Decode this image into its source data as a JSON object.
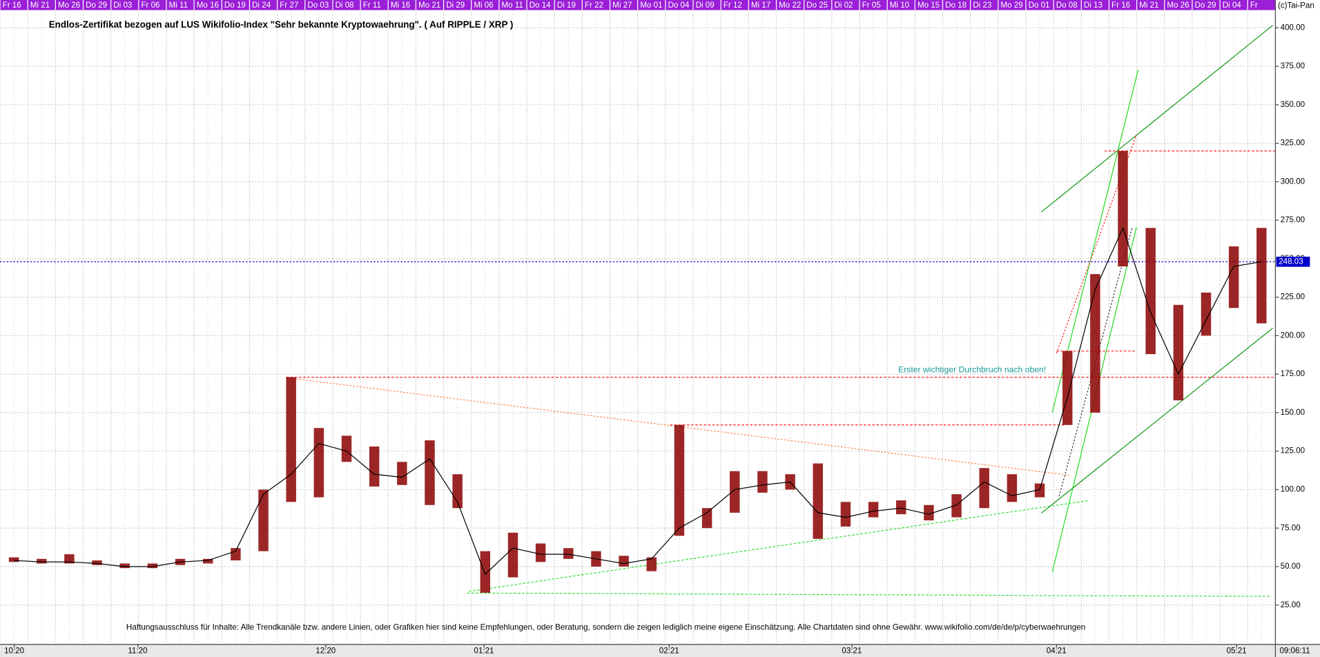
{
  "chart_data": {
    "type": "range",
    "title": "Endlos-Zertifikat bezogen auf LUS Wikifolio-Index \"Sehr bekannte Kryptowaehrung\". ( Auf RIPPLE / XRP )",
    "source": "(c)Tai-Pan",
    "timestamp": "09:06:11",
    "annotation": "Erster wichtiger Durchbruch nach oben!",
    "disclaimer": "Haftungsausschluss für Inhalte: Alle Trendkanäle bzw. andere Linien, oder Grafiken hier sind keine Empfehlungen, oder Beratung, sondern die zeigen lediglich meine eigene Einschätzung. Alle Chartdaten sind ohne Gewähr.  www.wikifolio.com/de/de/p/cyberwaehrungen",
    "categories": [
      "Fr 16",
      "Mi 21",
      "Mo 26",
      "Do 29",
      "Di 03",
      "Fr 06",
      "Mi 11",
      "Mo 16",
      "Do 19",
      "Di 24",
      "Fr 27",
      "Do 03",
      "Di 08",
      "Fr 11",
      "Mi 16",
      "Mo 21",
      "Di 29",
      "Mi 06",
      "Mo 11",
      "Do 14",
      "Di 19",
      "Fr 22",
      "Mi 27",
      "Mo 01",
      "Do 04",
      "Di 09",
      "Fr 12",
      "Mi 17",
      "Mo 22",
      "Do 25",
      "Di 02",
      "Fr 05",
      "Mi 10",
      "Mo 15",
      "Do 18",
      "Di 23",
      "Mo 29",
      "Do 01",
      "Do 08",
      "Di 13",
      "Fr 16",
      "Mi 21",
      "Mo 26",
      "Do 29",
      "Di 04",
      "Fr"
    ],
    "months": [
      "10:20",
      "11:20",
      "12:20",
      "01:21",
      "02:21",
      "03:21",
      "04:21",
      "05:21"
    ],
    "high": [
      56,
      55,
      58,
      54,
      52,
      52,
      55,
      55,
      62,
      100,
      173,
      140,
      135,
      128,
      118,
      132,
      110,
      60,
      72,
      65,
      62,
      60,
      57,
      56,
      142,
      88,
      112,
      112,
      110,
      117,
      92,
      92,
      93,
      90,
      97,
      114,
      110,
      104,
      190,
      240,
      320,
      270,
      220,
      228,
      258,
      270
    ],
    "low": [
      53,
      52,
      52,
      51,
      49,
      49,
      51,
      52,
      54,
      60,
      92,
      95,
      118,
      102,
      103,
      90,
      88,
      33,
      43,
      53,
      55,
      50,
      50,
      47,
      70,
      75,
      85,
      98,
      100,
      68,
      76,
      82,
      84,
      80,
      82,
      88,
      92,
      95,
      142,
      150,
      245,
      188,
      158,
      200,
      218,
      208
    ],
    "close": [
      54,
      53,
      53,
      52,
      50,
      50,
      53,
      54,
      60,
      97,
      110,
      130,
      125,
      110,
      108,
      120,
      92,
      45,
      62,
      58,
      58,
      55,
      52,
      55,
      75,
      85,
      100,
      103,
      105,
      85,
      82,
      86,
      88,
      84,
      90,
      105,
      96,
      100,
      160,
      230,
      270,
      215,
      175,
      210,
      245,
      248.03
    ],
    "color": "#8b0000",
    "close_color": "#000000",
    "levels": [
      320,
      190,
      173,
      142
    ],
    "level_color": "#ff2020",
    "last_value": 248.03,
    "last_color": "#0000cc",
    "ylim": [
      0,
      411.5
    ],
    "yticks": [
      {
        "value": 25,
        "label": "25.00"
      },
      {
        "value": 50,
        "label": "50.00"
      },
      {
        "value": 75,
        "label": "75.00"
      },
      {
        "value": 100,
        "label": "100.00"
      },
      {
        "value": 125,
        "label": "125.00"
      },
      {
        "value": 150,
        "label": "150.00"
      },
      {
        "value": 175,
        "label": "175.00"
      },
      {
        "value": 200,
        "label": "200.00"
      },
      {
        "value": 225,
        "label": "225.00"
      },
      {
        "value": 250,
        "label": "250.00"
      },
      {
        "value": 275,
        "label": "275.00"
      },
      {
        "value": 300,
        "label": "300.00"
      },
      {
        "value": 325,
        "label": "325.00"
      },
      {
        "value": 350,
        "label": "350.00"
      },
      {
        "value": 375,
        "label": "375.00"
      },
      {
        "value": 400,
        "label": "400.00"
      }
    ],
    "grid": true
  }
}
